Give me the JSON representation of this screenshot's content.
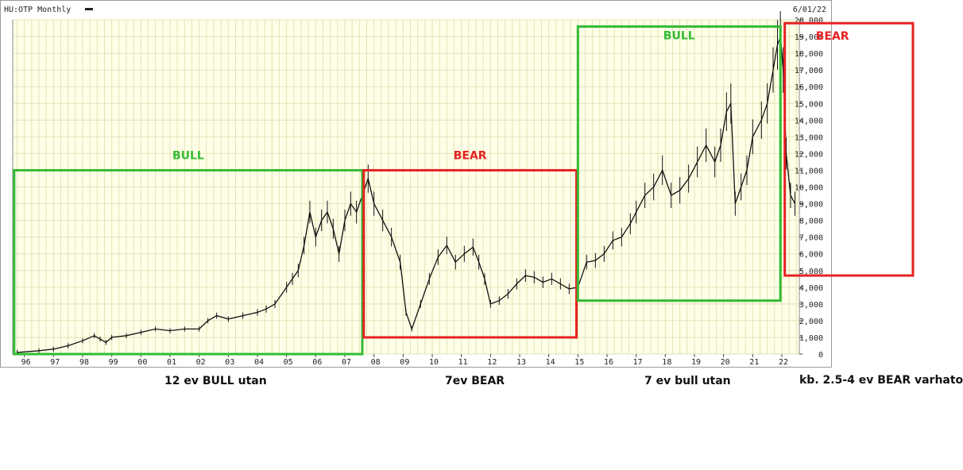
{
  "header": {
    "symbol": "HU:OTP Monthly",
    "date": "6/01/22"
  },
  "colors": {
    "plot_bg": "#ffffe8",
    "grid": "#e2e2b6",
    "bull": "#33bb33",
    "bear": "#e62222",
    "price": "#111111"
  },
  "captions": [
    "12 ev BULL utan",
    "7ev BEAR",
    "7 ev bull utan",
    "kb. 2.5-4 ev BEAR varhato"
  ],
  "chart_data": {
    "type": "line",
    "title": "HU:OTP Monthly",
    "x_tick_labels": [
      "96",
      "97",
      "98",
      "99",
      "00",
      "01",
      "02",
      "03",
      "04",
      "05",
      "06",
      "07",
      "08",
      "09",
      "10",
      "11",
      "12",
      "13",
      "14",
      "15",
      "16",
      "17",
      "18",
      "19",
      "20",
      "21",
      "22"
    ],
    "x_range": [
      1995.6,
      2022.6
    ],
    "y_tick_labels": [
      "0",
      "1,000",
      "2,000",
      "3,000",
      "4,000",
      "5,000",
      "6,000",
      "7,000",
      "8,000",
      "9,000",
      "10,000",
      "11,000",
      "12,000",
      "13,000",
      "14,000",
      "15,000",
      "16,000",
      "17,000",
      "18,000",
      "19,000",
      "20,000"
    ],
    "ylim": [
      0,
      20000
    ],
    "grid": true,
    "series": [
      {
        "x": [
          1995.75,
          1996.5,
          1997.0,
          1997.5,
          1998.0,
          1998.4,
          1998.6,
          1998.8,
          1999.0,
          1999.5,
          2000.0,
          2000.5,
          2001.0,
          2001.5,
          2002.0,
          2002.3,
          2002.6,
          2003.0,
          2003.5,
          2004.0,
          2004.3,
          2004.6,
          2005.0,
          2005.2,
          2005.4,
          2005.6,
          2005.8,
          2006.0,
          2006.2,
          2006.4,
          2006.6,
          2006.8,
          2007.0,
          2007.2,
          2007.4,
          2007.6,
          2007.8,
          2008.0,
          2008.3,
          2008.6,
          2008.9,
          2009.1,
          2009.3,
          2009.6,
          2009.9,
          2010.2,
          2010.5,
          2010.8,
          2011.1,
          2011.4,
          2011.6,
          2011.8,
          2012.0,
          2012.3,
          2012.6,
          2012.9,
          2013.2,
          2013.5,
          2013.8,
          2014.1,
          2014.4,
          2014.7,
          2015.0,
          2015.3,
          2015.6,
          2015.9,
          2016.2,
          2016.5,
          2016.8,
          2017.0,
          2017.3,
          2017.6,
          2017.9,
          2018.2,
          2018.5,
          2018.8,
          2019.1,
          2019.4,
          2019.7,
          2019.9,
          2020.1,
          2020.25,
          2020.4,
          2020.6,
          2020.8,
          2021.0,
          2021.3,
          2021.5,
          2021.7,
          2021.85,
          2021.95,
          2022.05,
          2022.15,
          2022.3,
          2022.45
        ],
        "y": [
          100,
          200,
          300,
          500,
          800,
          1100,
          900,
          700,
          1000,
          1100,
          1300,
          1500,
          1400,
          1500,
          1500,
          2000,
          2300,
          2100,
          2300,
          2500,
          2700,
          3000,
          4000,
          4500,
          5000,
          6500,
          8500,
          7000,
          8000,
          8500,
          7500,
          6000,
          8000,
          9000,
          8500,
          9500,
          10500,
          9000,
          8000,
          7000,
          5500,
          2500,
          1500,
          3000,
          4500,
          5800,
          6500,
          5500,
          6000,
          6400,
          5500,
          4500,
          3000,
          3200,
          3600,
          4200,
          4700,
          4600,
          4300,
          4500,
          4200,
          3900,
          4000,
          5500,
          5600,
          6000,
          6800,
          7000,
          7800,
          8500,
          9500,
          10000,
          11000,
          9500,
          9800,
          10500,
          11500,
          12500,
          11500,
          12500,
          14500,
          15000,
          9000,
          10000,
          11000,
          13000,
          14000,
          15000,
          17000,
          18500,
          19000,
          17000,
          12000,
          9500,
          9000
        ]
      }
    ],
    "annotations": [
      {
        "label": "BULL",
        "kind": "bull",
        "x_from": 1995.65,
        "x_to": 2007.6,
        "y_from": 0,
        "y_to": 11000
      },
      {
        "label": "BEAR",
        "kind": "bear",
        "x_from": 2007.65,
        "x_to": 2014.95,
        "y_from": 1000,
        "y_to": 11000
      },
      {
        "label": "BULL",
        "kind": "bull",
        "x_from": 2015.0,
        "x_to": 2021.95,
        "y_from": 3200,
        "y_to": 19600
      },
      {
        "label": "BEAR",
        "kind": "bear",
        "x_from": 2022.1,
        "x_to": 2026.5,
        "y_from": 4700,
        "y_to": 19800
      }
    ]
  }
}
